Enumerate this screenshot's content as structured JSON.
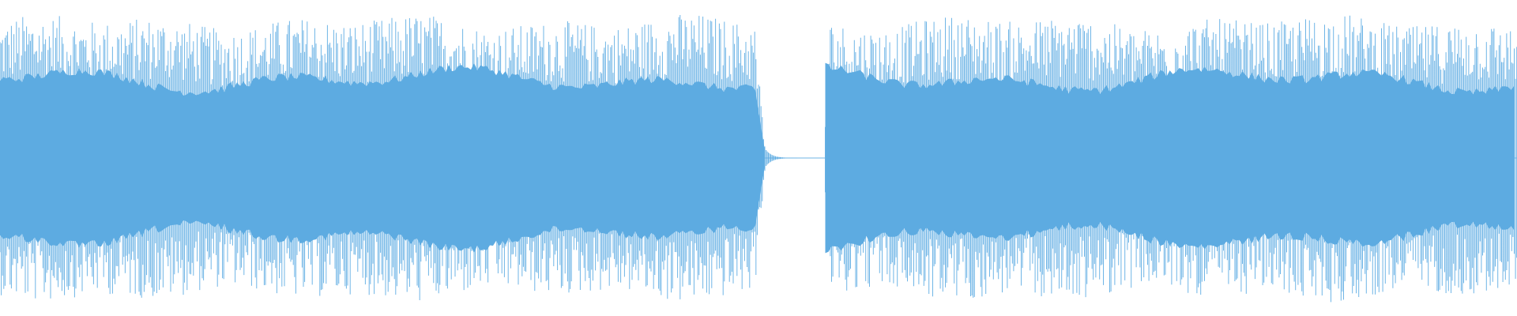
{
  "waveform": {
    "colors": {
      "background": "#ffffff",
      "wave_body": "#5dabe1",
      "wave_peaks": "#6fb5e6"
    },
    "segments": [
      {
        "name": "segment-1",
        "start_fraction": 0.0,
        "end_fraction": 0.505,
        "level": 0.92,
        "fade_out": true
      },
      {
        "name": "segment-2",
        "start_fraction": 0.544,
        "end_fraction": 1.0,
        "level": 0.92,
        "fade_out": false
      }
    ],
    "silence": {
      "start_fraction": 0.505,
      "end_fraction": 0.544
    }
  }
}
